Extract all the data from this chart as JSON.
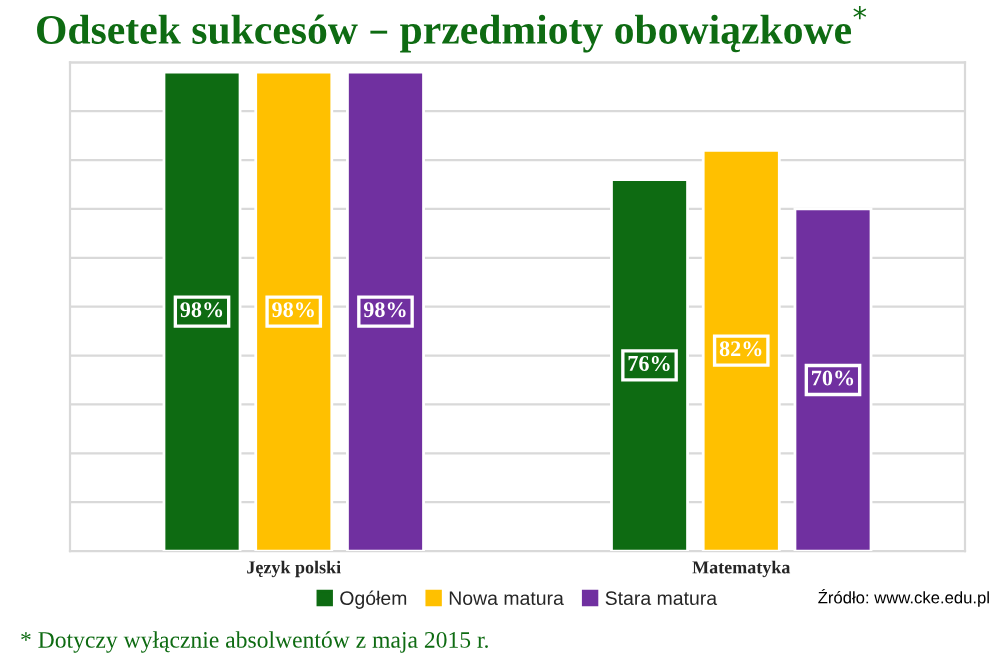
{
  "chart_data": {
    "type": "bar",
    "title": "Odsetek sukcesów – przedmioty obowiązkowe$^{*}$",
    "categories": [
      "Język polski",
      "Matematyka"
    ],
    "series": [
      {
        "name": "Ogółem",
        "color": "#0e6b12",
        "values": [
          98,
          76
        ],
        "value_labels": [
          "98%",
          "76%"
        ]
      },
      {
        "name": "Nowa matura",
        "color": "#ffc000",
        "values": [
          98,
          82
        ],
        "value_labels": [
          "98%",
          "82%"
        ]
      },
      {
        "name": "Stara matura",
        "color": "#7030a0",
        "values": [
          98,
          70
        ],
        "value_labels": [
          "98%",
          "70%"
        ]
      }
    ],
    "ylim": [
      0,
      100
    ],
    "yticks": [
      {
        "value": 0,
        "label": null
      },
      {
        "value": 10,
        "label": null
      },
      {
        "value": 20,
        "label": null
      },
      {
        "value": 30,
        "label": null
      },
      {
        "value": 40,
        "label": null
      },
      {
        "value": 50,
        "label": null
      },
      {
        "value": 60,
        "label": null
      },
      {
        "value": 70,
        "label": null
      },
      {
        "value": 80,
        "label": null
      },
      {
        "value": 90,
        "label": null
      },
      {
        "value": 100,
        "label": null
      }
    ],
    "tick_labels": "x",
    "grid": "y",
    "legend": "bottom",
    "annotations": [
      "* Dotyczy wyłącznie absolwentów z maja 2015 r.",
      "Źródło: www.cke.edu.pl"
    ]
  }
}
